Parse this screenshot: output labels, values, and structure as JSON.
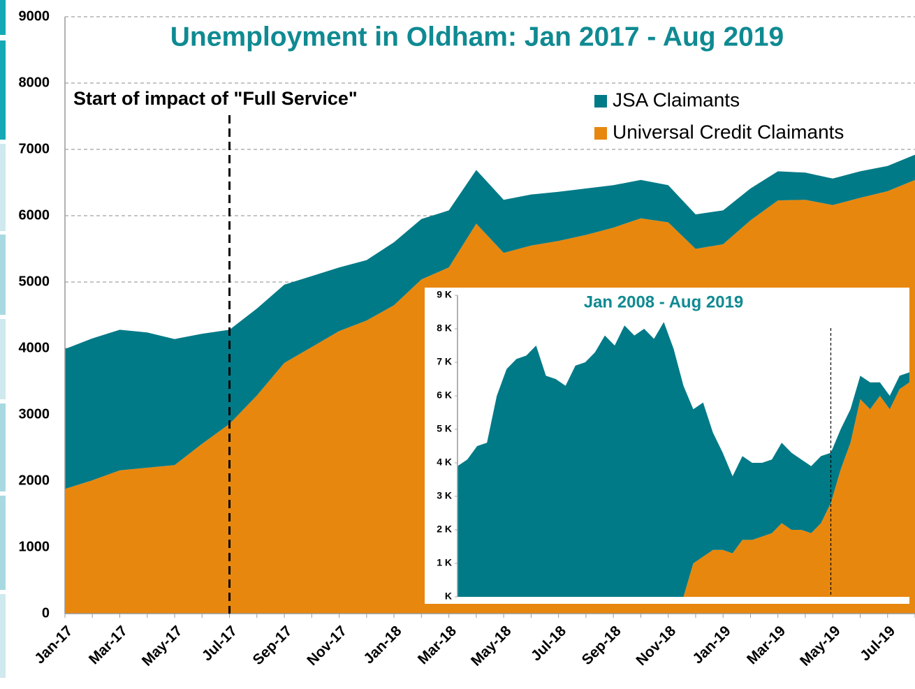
{
  "chart_data": [
    {
      "type": "stacked_area",
      "title": "Unemployment in Oldham: Jan 2017 - Aug 2019",
      "annotation": "Start of impact of \"Full Service\"",
      "categories": [
        "Jan-17",
        null,
        "Mar-17",
        null,
        "May-17",
        null,
        "Jul-17",
        null,
        "Sep-17",
        null,
        "Nov-17",
        null,
        "Jan-18",
        null,
        "Mar-18",
        null,
        "May-18",
        null,
        "Jul-18",
        null,
        "Sep-18",
        null,
        "Nov-18",
        null,
        "Jan-19",
        null,
        "Mar-19",
        null,
        "May-19",
        null,
        "Jul-19",
        null
      ],
      "series": [
        {
          "name": "JSA Claimants",
          "color": "#007a87",
          "values": [
            2110,
            2140,
            2120,
            2040,
            1900,
            1660,
            1420,
            1310,
            1180,
            1070,
            960,
            910,
            950,
            910,
            860,
            810,
            800,
            770,
            740,
            700,
            640,
            580,
            560,
            520,
            510,
            480,
            440,
            410,
            400,
            400,
            380,
            380
          ]
        },
        {
          "name": "Universal Credit Claimants",
          "color": "#e8870e",
          "values": [
            1880,
            2010,
            2160,
            2200,
            2240,
            2560,
            2860,
            3290,
            3780,
            4020,
            4260,
            4420,
            4650,
            5040,
            5220,
            5880,
            5440,
            5550,
            5620,
            5710,
            5820,
            5960,
            5900,
            5500,
            5570,
            5930,
            6230,
            6240,
            6160,
            6270,
            6370,
            6540
          ]
        }
      ],
      "ylim": [
        0,
        9000
      ],
      "yticks": [
        0,
        1000,
        2000,
        3000,
        4000,
        5000,
        6000,
        7000,
        8000,
        9000
      ],
      "grid": true,
      "legend": "top-right"
    },
    {
      "type": "stacked_area",
      "title": "Jan 2008 - Aug 2019",
      "categories": [
        null,
        null,
        null,
        null,
        null,
        null,
        null,
        null,
        null,
        null,
        null,
        null,
        null,
        null,
        null,
        null,
        null,
        null,
        null,
        null,
        null,
        null,
        null,
        null,
        null,
        null,
        null,
        null,
        null,
        null,
        null,
        null,
        null,
        null,
        null,
        null,
        null,
        null,
        null,
        null,
        null,
        null,
        null,
        null,
        null,
        null,
        null
      ],
      "series": [
        {
          "name": "JSA Claimants",
          "color": "#007a87",
          "values": [
            3900,
            4100,
            4500,
            4600,
            6000,
            6800,
            7100,
            7200,
            7500,
            6600,
            6500,
            6300,
            6900,
            7000,
            7300,
            7800,
            7500,
            8100,
            7800,
            8000,
            7700,
            8200,
            7400,
            6300,
            4600,
            4600,
            3500,
            2900,
            2300,
            2500,
            2300,
            2200,
            2200,
            2400,
            2300,
            2100,
            2000,
            2000,
            1500,
            1200,
            1000,
            700,
            800,
            400,
            400,
            400,
            300
          ]
        },
        {
          "name": "Universal Credit Claimants",
          "color": "#e8870e",
          "values": [
            0,
            0,
            0,
            0,
            0,
            0,
            0,
            0,
            0,
            0,
            0,
            0,
            0,
            0,
            0,
            0,
            0,
            0,
            0,
            0,
            0,
            0,
            0,
            0,
            1000,
            1200,
            1400,
            1400,
            1300,
            1700,
            1700,
            1800,
            1900,
            2200,
            2000,
            2000,
            1900,
            2200,
            2800,
            3800,
            4600,
            5900,
            5600,
            6000,
            5600,
            6200,
            6400
          ]
        }
      ],
      "ylim": [
        0,
        9000
      ],
      "yticks": [
        {
          "value": 0,
          "label": "K"
        },
        {
          "value": 1000,
          "label": "1 K"
        },
        {
          "value": 2000,
          "label": "2 K"
        },
        {
          "value": 3000,
          "label": "3 K"
        },
        {
          "value": 4000,
          "label": "4 K"
        },
        {
          "value": 5000,
          "label": "5 K"
        },
        {
          "value": 6000,
          "label": "6 K"
        },
        {
          "value": 7000,
          "label": "7 K"
        },
        {
          "value": 8000,
          "label": "8 K"
        },
        {
          "value": 9000,
          "label": "9 K"
        }
      ]
    }
  ]
}
